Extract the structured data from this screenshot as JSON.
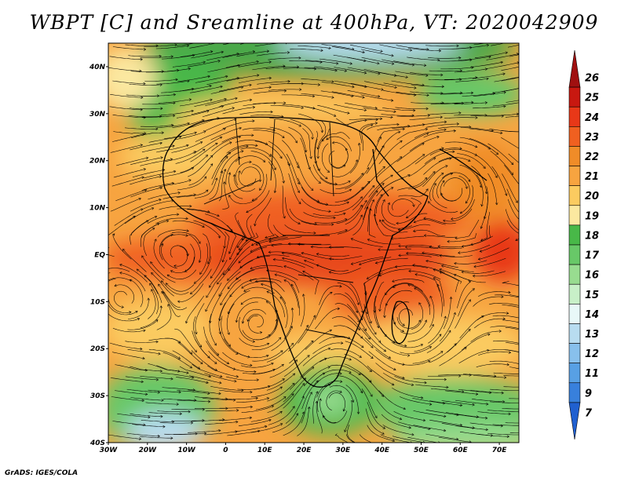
{
  "title": "WBPT [C] and Sreamline at 400hPa, VT: 2020042909",
  "credit": "GrADS: IGES/COLA",
  "map": {
    "lat_labels": [
      "40N",
      "30N",
      "20N",
      "10N",
      "EQ",
      "10S",
      "20S",
      "30S",
      "40S"
    ],
    "lat_values": [
      40,
      30,
      20,
      10,
      0,
      -10,
      -20,
      -30,
      -40
    ],
    "lon_labels": [
      "30W",
      "20W",
      "10W",
      "0",
      "10E",
      "20E",
      "30E",
      "40E",
      "50E",
      "60E",
      "70E"
    ],
    "lon_values": [
      -30,
      -20,
      -10,
      0,
      10,
      20,
      30,
      40,
      50,
      60,
      70
    ],
    "lon_range": [
      -30,
      75
    ],
    "lat_range": [
      -40,
      45
    ]
  },
  "colorbar": {
    "labels": [
      "26",
      "25",
      "24",
      "23",
      "22",
      "21",
      "20",
      "19",
      "18",
      "17",
      "16",
      "15",
      "14",
      "13",
      "12",
      "11",
      "9",
      "7"
    ],
    "colors": [
      "#a01010",
      "#c81810",
      "#e83818",
      "#f06020",
      "#f08c28",
      "#f7a440",
      "#fbcb60",
      "#fbe8a0",
      "#48b848",
      "#68c868",
      "#98dc90",
      "#c8f0c8",
      "#e8f8f8",
      "#b8dcf0",
      "#88c0ec",
      "#58a0e4",
      "#3880dc",
      "#2060d0"
    ]
  }
}
